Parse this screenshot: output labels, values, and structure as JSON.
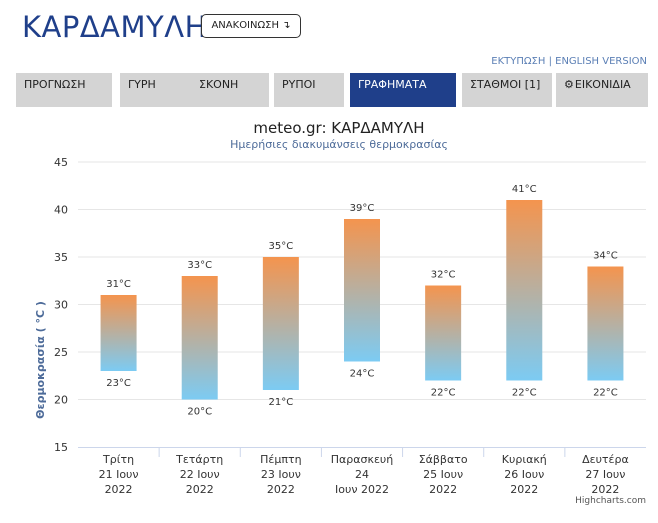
{
  "header": {
    "site_title": "ΚΑΡΔΑΜΥΛΗ",
    "announce_label": "ΑΝΑΚΟΙΝΩΣΗ ↴",
    "print_link": "ΕΚΤΥΠΩΣΗ",
    "link_separator": " | ",
    "english_link": "ENGLISH VERSION"
  },
  "nav": {
    "tabs": [
      {
        "label": "ΠΡΟΓΝΩΣΗ",
        "active": false
      },
      {
        "label": "ΓΥΡΗ",
        "active": false
      },
      {
        "label": "ΣΚΟΝΗ",
        "active": false
      },
      {
        "label": "ΡΥΠΟΙ",
        "active": false
      },
      {
        "label": "ΓΡΑΦΗΜΑΤΑ",
        "active": true
      },
      {
        "label": "ΣΤΑΘΜΟΙ [1]",
        "active": false
      },
      {
        "label": "ΕΙΚΟΝΙΔΙΑ",
        "active": false,
        "icon": "gear-icon"
      }
    ]
  },
  "colors": {
    "brand": "#1f3f8a",
    "tab_inactive": "#d4d4d4",
    "bar_top": "#f4944e",
    "bar_bottom": "#7ccbf3",
    "axis_title": "#4d6b99",
    "credits": "#555555"
  },
  "chart_data": {
    "type": "bar",
    "variant": "columnrange",
    "title": "meteo.gr: ΚΑΡΔΑΜΥΛΗ",
    "subtitle": "Ημερήσιες διακυμάνσεις θερμοκρασίας",
    "ylabel": "Θερμοκρασία ( °C )",
    "ylim": [
      15,
      45
    ],
    "yticks": [
      15,
      20,
      25,
      30,
      35,
      40,
      45
    ],
    "grid": true,
    "unit": "°C",
    "categories": [
      [
        "Τρίτη",
        "21 Ιουν",
        "2022"
      ],
      [
        "Τετάρτη",
        "22 Ιουν",
        "2022"
      ],
      [
        "Πέμπτη",
        "23 Ιουν",
        "2022"
      ],
      [
        "Παρασκευή",
        "24",
        "Ιουν 2022"
      ],
      [
        "Σάββατο",
        "25 Ιουν",
        "2022"
      ],
      [
        "Κυριακή",
        "26 Ιουν",
        "2022"
      ],
      [
        "Δευτέρα",
        "27 Ιουν",
        "2022"
      ]
    ],
    "low": [
      23,
      20,
      21,
      24,
      22,
      22,
      22
    ],
    "high": [
      31,
      33,
      35,
      39,
      32,
      41,
      34
    ],
    "low_labels": [
      "23°C",
      "20°C",
      "21°C",
      "24°C",
      "22°C",
      "22°C",
      "22°C"
    ],
    "high_labels": [
      "31°C",
      "33°C",
      "35°C",
      "39°C",
      "32°C",
      "41°C",
      "34°C"
    ],
    "credits": "Highcharts.com"
  }
}
